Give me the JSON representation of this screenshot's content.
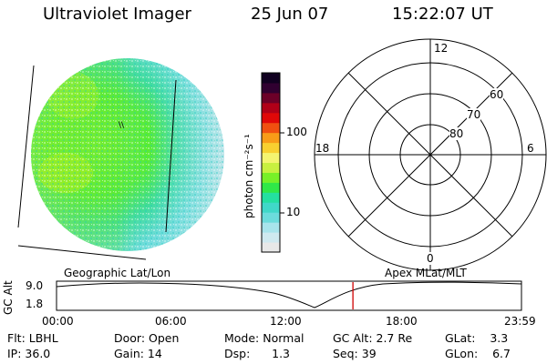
{
  "header": {
    "title": "Ultraviolet Imager",
    "date": "25 Jun 07",
    "time": "15:22:07 UT"
  },
  "colorbar": {
    "unit_label": "photon cm⁻²s⁻¹",
    "tick_100": "100",
    "tick_10": "10",
    "colors": [
      "#e8e8e8",
      "#cfe9f0",
      "#a8e4ec",
      "#6cdcdc",
      "#40d8c8",
      "#24e0a0",
      "#30e848",
      "#78f028",
      "#c8f040",
      "#f4f470",
      "#f8d030",
      "#f89c18",
      "#f05010",
      "#e00808",
      "#b00018",
      "#6c0028",
      "#300030",
      "#100020"
    ]
  },
  "image_labels": {
    "left": "Geographic Lat/Lon",
    "right": "Apex MLat/MLT"
  },
  "polar": {
    "mlt_top": "12",
    "mlt_left": "18",
    "mlt_right": "6",
    "mlt_bottom": "0",
    "lat_60": "60",
    "lat_70": "70",
    "lat_80": "80"
  },
  "orbit": {
    "axis_label": "GC Alt",
    "y_max": "9.0",
    "y_min": "1.8",
    "time_ticks": [
      "00:00",
      "06:00",
      "12:00",
      "18:00",
      "23:59"
    ],
    "current_fraction": 0.6375
  },
  "info": {
    "flt": "Flt: LBHL",
    "door": "Door: Open",
    "mode": "Mode: Normal",
    "gc_alt": "GC Alt: 2.7 Re",
    "glat": "GLat:    3.3",
    "ip": "IP: 36.0",
    "gain": "Gain: 14",
    "dsp": "Dsp:      1.3",
    "seq": "Seq: 39",
    "glon": "GLon:    6.7"
  }
}
